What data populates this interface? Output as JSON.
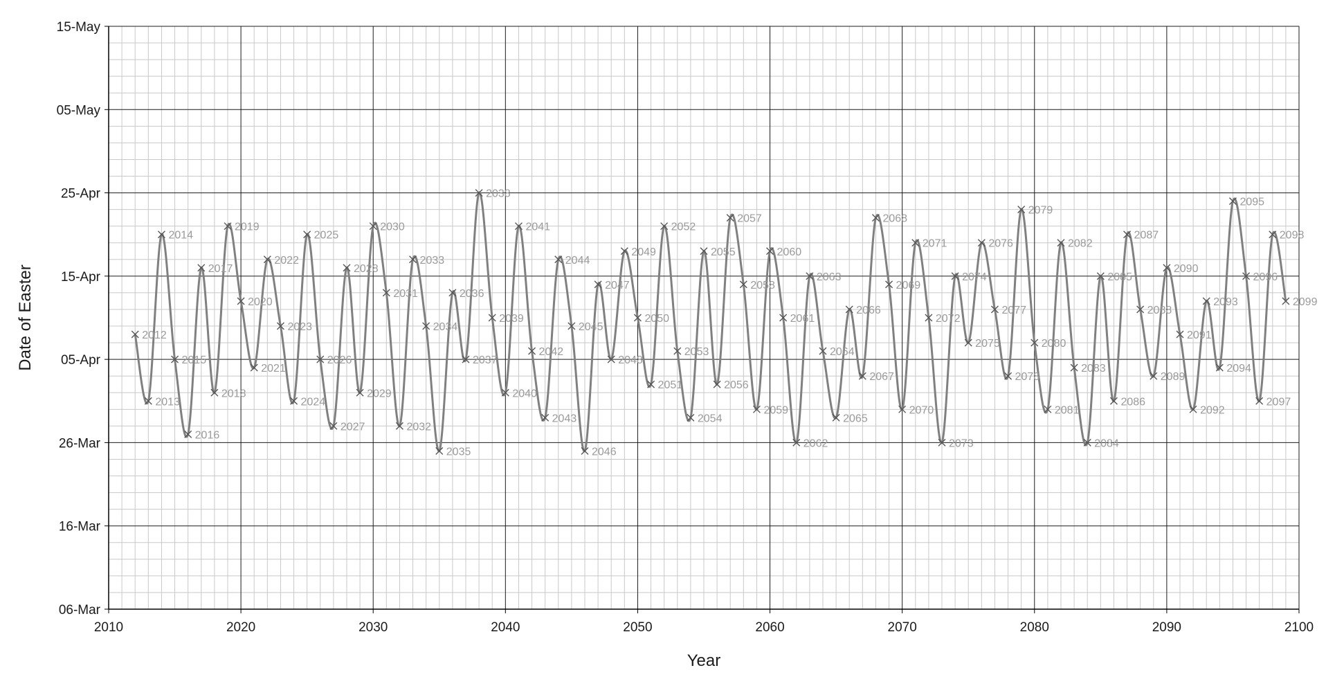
{
  "chart_data": {
    "type": "line",
    "xlabel": "Year",
    "ylabel": "Date of Easter",
    "xlim": [
      2010,
      2100
    ],
    "x_ticks": [
      2010,
      2020,
      2030,
      2040,
      2050,
      2060,
      2070,
      2080,
      2090,
      2100
    ],
    "x_tick_labels": [
      "2010",
      "2020",
      "2030",
      "2040",
      "2050",
      "2060",
      "2070",
      "2080",
      "2090",
      "2100"
    ],
    "ylim": [
      "06-Mar",
      "15-May"
    ],
    "y_tick_labels": [
      "06-Mar",
      "16-Mar",
      "26-Mar",
      "05-Apr",
      "15-Apr",
      "25-Apr",
      "05-May",
      "15-May"
    ],
    "grid": true,
    "marker": "x",
    "colors": {
      "line": "#808080",
      "marker": "#555555",
      "label": "#9a9a9a",
      "major_grid": "#1a1a1a",
      "minor_grid": "#c8c8c8"
    },
    "series": [
      {
        "x": [
          "2012",
          "2013",
          "2014",
          "2015",
          "2016",
          "2017",
          "2018",
          "2019",
          "2020",
          "2021",
          "2022",
          "2023",
          "2024",
          "2025",
          "2026",
          "2027",
          "2028",
          "2029",
          "2030",
          "2031",
          "2032",
          "2033",
          "2034",
          "2035",
          "2036",
          "2037",
          "2038",
          "2039",
          "2040",
          "2041",
          "2042",
          "2043",
          "2044",
          "2045",
          "2046",
          "2047",
          "2048",
          "2049",
          "2050",
          "2051",
          "2052",
          "2053",
          "2054",
          "2055",
          "2056",
          "2057",
          "2058",
          "2059",
          "2060",
          "2061",
          "2062",
          "2063",
          "2064",
          "2065",
          "2066",
          "2067",
          "2068",
          "2069",
          "2070",
          "2071",
          "2072",
          "2073",
          "2074",
          "2075",
          "2076",
          "2077",
          "2078",
          "2079",
          "2080",
          "2081",
          "2082",
          "2083",
          "2084",
          "2085",
          "2086",
          "2087",
          "2088",
          "2089",
          "2090",
          "2091",
          "2092",
          "2093",
          "2094",
          "2095",
          "2096",
          "2097",
          "2098",
          "2099"
        ],
        "y": [
          "08-Apr",
          "31-Mar",
          "20-Apr",
          "05-Apr",
          "27-Mar",
          "16-Apr",
          "01-Apr",
          "21-Apr",
          "12-Apr",
          "04-Apr",
          "17-Apr",
          "09-Apr",
          "31-Mar",
          "20-Apr",
          "05-Apr",
          "28-Mar",
          "16-Apr",
          "01-Apr",
          "21-Apr",
          "13-Apr",
          "28-Mar",
          "17-Apr",
          "09-Apr",
          "25-Mar",
          "13-Apr",
          "05-Apr",
          "25-Apr",
          "10-Apr",
          "01-Apr",
          "21-Apr",
          "06-Apr",
          "29-Mar",
          "17-Apr",
          "09-Apr",
          "25-Mar",
          "14-Apr",
          "05-Apr",
          "18-Apr",
          "10-Apr",
          "02-Apr",
          "21-Apr",
          "06-Apr",
          "29-Mar",
          "18-Apr",
          "02-Apr",
          "22-Apr",
          "14-Apr",
          "30-Mar",
          "18-Apr",
          "10-Apr",
          "26-Mar",
          "15-Apr",
          "06-Apr",
          "29-Mar",
          "11-Apr",
          "03-Apr",
          "22-Apr",
          "14-Apr",
          "30-Mar",
          "19-Apr",
          "10-Apr",
          "26-Mar",
          "15-Apr",
          "07-Apr",
          "19-Apr",
          "11-Apr",
          "03-Apr",
          "23-Apr",
          "07-Apr",
          "30-Mar",
          "19-Apr",
          "04-Apr",
          "26-Mar",
          "15-Apr",
          "31-Mar",
          "20-Apr",
          "11-Apr",
          "03-Apr",
          "16-Apr",
          "08-Apr",
          "30-Mar",
          "12-Apr",
          "04-Apr",
          "24-Apr",
          "15-Apr",
          "31-Mar",
          "20-Apr",
          "12-Apr"
        ],
        "point_labels": [
          "2012",
          "2013",
          "2014",
          "2015",
          "2016",
          "2017",
          "2018",
          "2019",
          "2020",
          "2021",
          "2022",
          "2023",
          "2024",
          "2025",
          "2026",
          "2027",
          "2028",
          "2029",
          "2030",
          "2031",
          "2032",
          "2033",
          "2034",
          "2035",
          "2036",
          "2037",
          "2038",
          "2039",
          "2040",
          "2041",
          "2042",
          "2043",
          "2044",
          "2045",
          "2046",
          "2047",
          "2048",
          "2049",
          "2050",
          "2051",
          "2052",
          "2053",
          "2054",
          "2055",
          "2056",
          "2057",
          "2058",
          "2059",
          "2060",
          "2061",
          "2062",
          "2063",
          "2064",
          "2065",
          "2066",
          "2067",
          "2068",
          "2069",
          "2070",
          "2071",
          "2072",
          "2073",
          "2074",
          "2075",
          "2076",
          "2077",
          "2078",
          "2079",
          "2080",
          "2081",
          "2082",
          "2083",
          "2084",
          "2085",
          "2086",
          "2087",
          "2088",
          "2089",
          "2090",
          "2091",
          "2092",
          "2093",
          "2094",
          "2095",
          "2096",
          "2097",
          "2098",
          "2099"
        ]
      }
    ]
  }
}
